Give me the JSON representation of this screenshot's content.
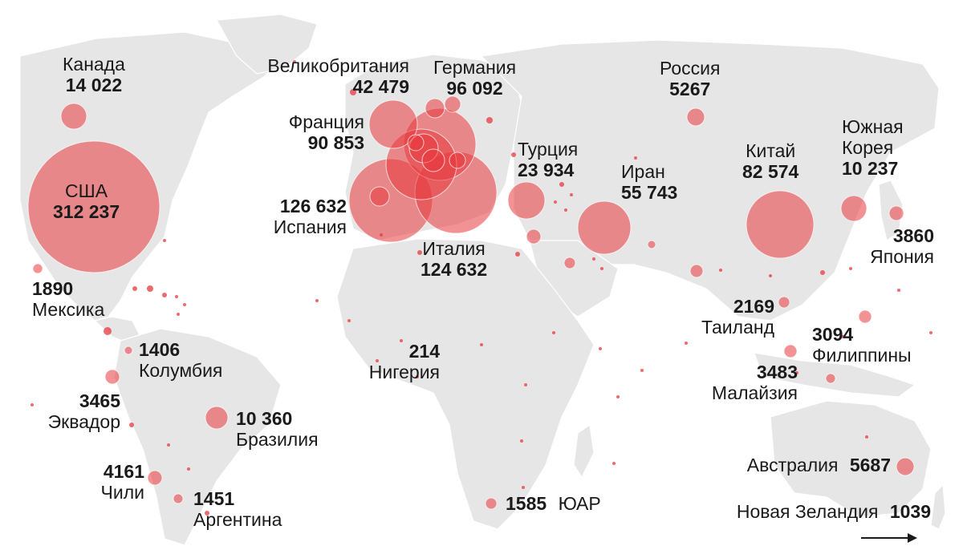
{
  "map": {
    "labels": {
      "canada": {
        "name": "Канада",
        "value": "14 022"
      },
      "usa": {
        "name": "США",
        "value": "312 237"
      },
      "mexico": {
        "name": "Мексика",
        "value": "1890"
      },
      "colombia": {
        "name": "Колумбия",
        "value": "1406"
      },
      "ecuador": {
        "name": "Эквадор",
        "value": "3465"
      },
      "brazil": {
        "name": "Бразилия",
        "value": "10 360"
      },
      "chile": {
        "name": "Чили",
        "value": "4161"
      },
      "argentina": {
        "name": "Аргентина",
        "value": "1451"
      },
      "uk": {
        "name": "Великобритания",
        "value": "42 479"
      },
      "germany": {
        "name": "Германия",
        "value": "96 092"
      },
      "france": {
        "name": "Франция",
        "value": "90 853"
      },
      "spain": {
        "name": "Испания",
        "value": "126 632"
      },
      "italy": {
        "name": "Италия",
        "value": "124 632"
      },
      "turkey": {
        "name": "Турция",
        "value": "23 934"
      },
      "iran": {
        "name": "Иран",
        "value": "55 743"
      },
      "russia": {
        "name": "Россия",
        "value": "5267"
      },
      "china": {
        "name": "Китай",
        "value": "82 574"
      },
      "south_korea": {
        "name": "Южная Корея",
        "name_line1": "Южная",
        "name_line2": "Корея",
        "value": "10 237"
      },
      "japan": {
        "name": "Япония",
        "value": "3860"
      },
      "nigeria": {
        "name": "Нигерия",
        "value": "214"
      },
      "thailand": {
        "name": "Таиланд",
        "value": "2169"
      },
      "philippines": {
        "name": "Филиппины",
        "value": "3094"
      },
      "malaysia": {
        "name": "Малайзия",
        "value": "3483"
      },
      "south_africa": {
        "name": "ЮАР",
        "value": "1585"
      },
      "australia": {
        "name": "Австралия",
        "value": "5687"
      },
      "new_zealand": {
        "name": "Новая Зеландия",
        "value": "1039"
      }
    },
    "colors": {
      "bubble": "#e8383d",
      "land": "#e6e6e6",
      "text": "#1a1a1a"
    },
    "icons": {
      "continue": "arrow-right-icon"
    }
  }
}
